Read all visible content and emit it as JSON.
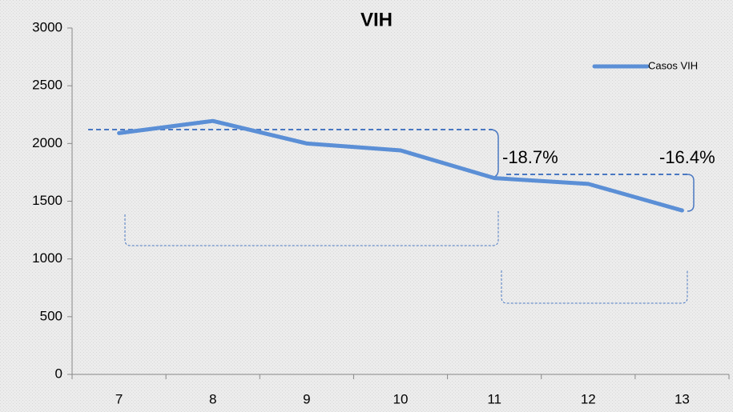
{
  "chart_data": {
    "type": "line",
    "title": "VIH",
    "categories": [
      "7",
      "8",
      "9",
      "10",
      "11",
      "12",
      "13"
    ],
    "series": [
      {
        "name": "Casos VIH",
        "color": "#5b8fd6",
        "values": [
          2090,
          2195,
          2000,
          1940,
          1700,
          1650,
          1420
        ]
      }
    ],
    "ylim": [
      0,
      3000
    ],
    "yticks": [
      0,
      500,
      1000,
      1500,
      2000,
      2500,
      3000
    ],
    "annotations": [
      "-18.7%",
      "-16.4%"
    ],
    "legend": "top-right"
  }
}
